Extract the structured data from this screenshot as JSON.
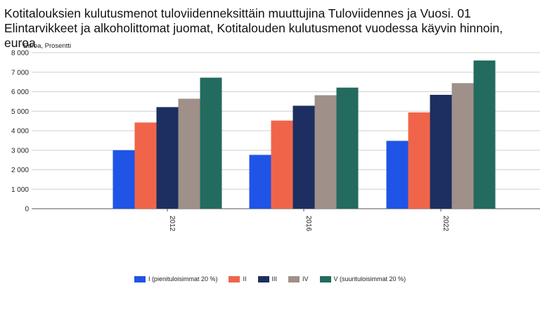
{
  "chart_data": {
    "type": "bar",
    "title": "Kotitalouksien kulutusmenot tuloviidenneksittäin muuttujina Tuloviidennes ja Vuosi. 01 Elintarvikkeet ja alkoholittomat juomat, Kotitalouden kulutusmenot vuodessa käyvin hinnoin, euroa",
    "subtitle": "Euroa, Prosentti",
    "categories": [
      "2012",
      "2016",
      "2022"
    ],
    "series": [
      {
        "name": "I (pienituloisimmat 20 %)",
        "color": "#1f54e6",
        "values": [
          3000,
          2760,
          3480
        ]
      },
      {
        "name": "II",
        "color": "#f0654a",
        "values": [
          4420,
          4520,
          4940
        ]
      },
      {
        "name": "III",
        "color": "#1c2f60",
        "values": [
          5210,
          5280,
          5840
        ]
      },
      {
        "name": "IV",
        "color": "#9f9089",
        "values": [
          5640,
          5820,
          6440
        ]
      },
      {
        "name": "V (suurituloisimmat 20 %)",
        "color": "#236b5e",
        "values": [
          6720,
          6210,
          7600
        ]
      }
    ],
    "yticks": [
      "0",
      "1 000",
      "2 000",
      "3 000",
      "4 000",
      "5 000",
      "6 000",
      "7 000",
      "8 000"
    ],
    "ylim": [
      0,
      8000
    ],
    "grid": true,
    "legend_position": "bottom"
  }
}
